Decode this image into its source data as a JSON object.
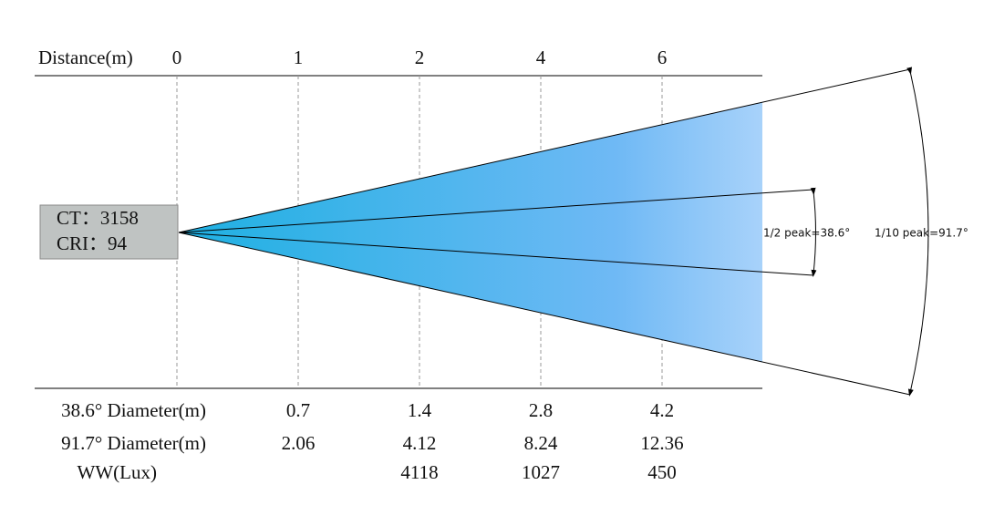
{
  "header": {
    "distance_label": "Distance(m)",
    "distances": [
      "0",
      "1",
      "2",
      "4",
      "6"
    ]
  },
  "source": {
    "ct": "CT：3158",
    "cri": "CRI：94"
  },
  "beam": {
    "half_peak": "1/2 peak=38.6°",
    "tenth_peak": "1/10 peak=91.7°"
  },
  "table": {
    "rows": [
      {
        "label": "38.6° Diameter(m)",
        "cells": [
          null,
          "0.7",
          "1.4",
          "2.8",
          "4.2"
        ]
      },
      {
        "label": "91.7° Diameter(m)",
        "cells": [
          null,
          "2.06",
          "4.12",
          "8.24",
          "12.36"
        ]
      },
      {
        "label": "WW(Lux)",
        "cells": [
          null,
          null,
          "4118",
          "1027",
          "450"
        ]
      }
    ]
  }
}
